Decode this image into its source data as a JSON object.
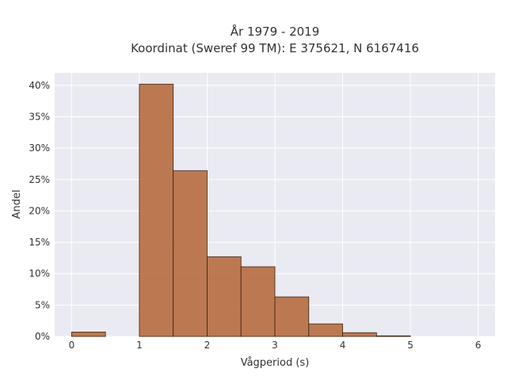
{
  "chart_data": {
    "type": "bar",
    "title_lines": [
      "År 1979 - 2019",
      "Koordinat (Sweref 99 TM): E 375621, N 6167416"
    ],
    "xlabel": "Vågperiod (s)",
    "ylabel": "Andel",
    "xlim": [
      -0.25,
      6.25
    ],
    "ylim": [
      0,
      0.42
    ],
    "xticks": [
      0,
      1,
      2,
      3,
      4,
      5,
      6
    ],
    "xtick_labels": [
      "0",
      "1",
      "2",
      "3",
      "4",
      "5",
      "6"
    ],
    "yticks": [
      0,
      0.05,
      0.1,
      0.15,
      0.2,
      0.25,
      0.3,
      0.35,
      0.4
    ],
    "ytick_labels": [
      "0%",
      "5%",
      "10%",
      "15%",
      "20%",
      "25%",
      "30%",
      "35%",
      "40%"
    ],
    "grid": true,
    "bar_color": "#b5693a",
    "plot_bg": "#eaeaf2",
    "bins": [
      {
        "x0": 0.0,
        "x1": 0.5,
        "value": 0.007
      },
      {
        "x0": 0.5,
        "x1": 1.0,
        "value": 0.0
      },
      {
        "x0": 1.0,
        "x1": 1.5,
        "value": 0.402
      },
      {
        "x0": 1.5,
        "x1": 2.0,
        "value": 0.264
      },
      {
        "x0": 2.0,
        "x1": 2.5,
        "value": 0.127
      },
      {
        "x0": 2.5,
        "x1": 3.0,
        "value": 0.111
      },
      {
        "x0": 3.0,
        "x1": 3.5,
        "value": 0.063
      },
      {
        "x0": 3.5,
        "x1": 4.0,
        "value": 0.02
      },
      {
        "x0": 4.0,
        "x1": 4.5,
        "value": 0.006
      },
      {
        "x0": 4.5,
        "x1": 5.0,
        "value": 0.001
      }
    ]
  }
}
